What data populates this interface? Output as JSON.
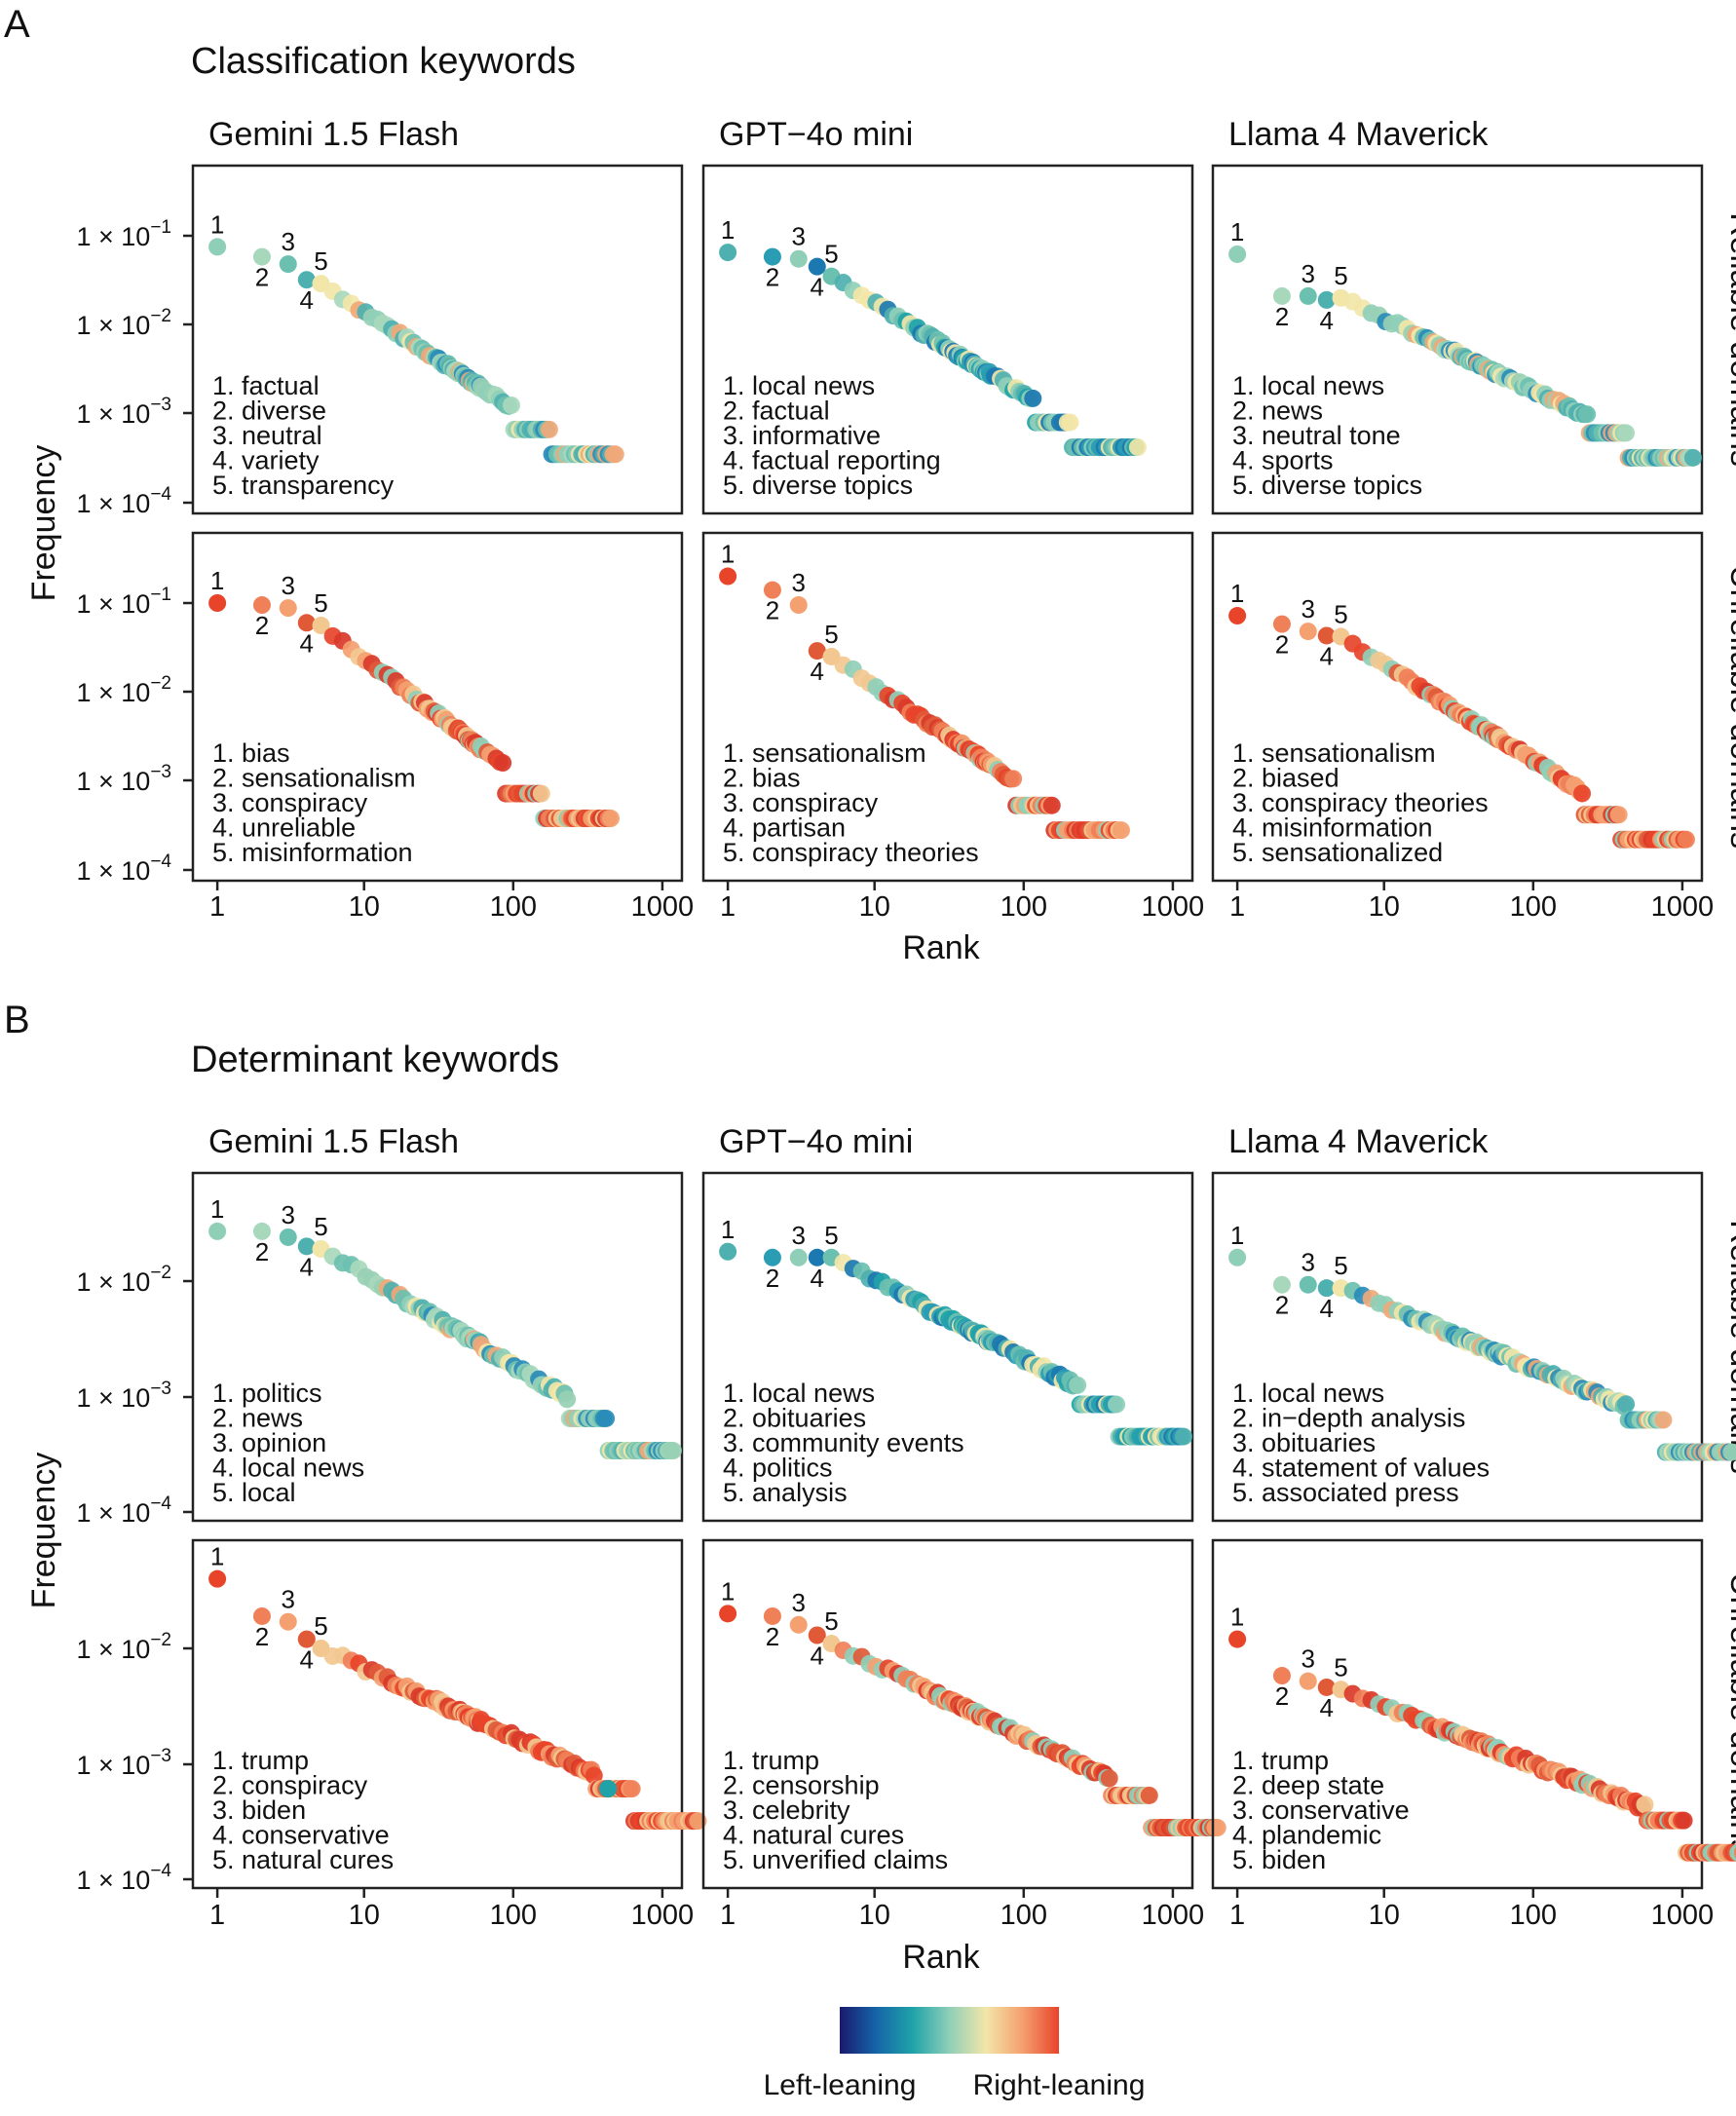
{
  "figure": {
    "panel_letters": [
      "A",
      "B"
    ],
    "colorbar": {
      "left_label": "Left-leaning",
      "right_label": "Right-leaning",
      "colors": [
        "#1a1a6e",
        "#1565a8",
        "#1fa3a8",
        "#8fcfb8",
        "#f2e6a8",
        "#f4a070",
        "#e8442a"
      ]
    }
  },
  "chart_data": [
    {
      "type": "scatter",
      "title": "Classification keywords",
      "xlabel": "Rank",
      "ylabel": "Frequency",
      "x_scale": "log",
      "y_scale": "log",
      "x_ticks": [
        "1",
        "10",
        "100",
        "1000"
      ],
      "y_ticks": [
        {
          "value": 0.1,
          "label_base": "1 × 10",
          "exp": "−1"
        },
        {
          "value": 0.01,
          "label_base": "1 × 10",
          "exp": "−2"
        },
        {
          "value": 0.001,
          "label_base": "1 × 10",
          "exp": "−3"
        },
        {
          "value": 0.0001,
          "label_base": "1 × 10",
          "exp": "−4"
        }
      ],
      "ylim": [
        0.0001,
        0.3
      ],
      "columns": [
        "Gemini 1.5 Flash",
        "GPT−4o mini",
        "Llama 4 Maverick"
      ],
      "rows": [
        "Reliable domains",
        "Unreliable domains"
      ],
      "panels": [
        {
          "model": "Gemini 1.5 Flash",
          "domains": "Reliable domains",
          "max_rank": 500,
          "palette": "reliable",
          "top5_freq": [
            0.075,
            0.058,
            0.048,
            0.032,
            0.029
          ],
          "end_freq": 0.00035,
          "top5_keywords": [
            "factual",
            "diverse",
            "neutral",
            "variety",
            "transparency"
          ]
        },
        {
          "model": "GPT−4o mini",
          "domains": "Reliable domains",
          "max_rank": 600,
          "palette": "reliable_blue",
          "top5_freq": [
            0.065,
            0.058,
            0.055,
            0.045,
            0.035
          ],
          "end_freq": 0.00042,
          "top5_keywords": [
            "local news",
            "factual",
            "informative",
            "factual reporting",
            "diverse topics"
          ]
        },
        {
          "model": "Llama 4 Maverick",
          "domains": "Reliable domains",
          "max_rank": 1200,
          "palette": "reliable",
          "top5_freq": [
            0.062,
            0.021,
            0.021,
            0.019,
            0.02
          ],
          "end_freq": 0.00032,
          "top5_keywords": [
            "local news",
            "news",
            "neutral tone",
            "sports",
            "diverse topics"
          ]
        },
        {
          "model": "Gemini 1.5 Flash",
          "domains": "Unreliable domains",
          "max_rank": 450,
          "palette": "unreliable",
          "top5_freq": [
            0.1,
            0.095,
            0.088,
            0.06,
            0.056
          ],
          "end_freq": 0.00038,
          "top5_keywords": [
            "bias",
            "sensationalism",
            "conspiracy",
            "unreliable",
            "misinformation"
          ]
        },
        {
          "model": "GPT−4o mini",
          "domains": "Unreliable domains",
          "max_rank": 450,
          "palette": "unreliable",
          "top5_freq": [
            0.2,
            0.14,
            0.095,
            0.029,
            0.025
          ],
          "end_freq": 0.00028,
          "top5_keywords": [
            "sensationalism",
            "bias",
            "conspiracy",
            "partisan",
            "conspiracy theories"
          ]
        },
        {
          "model": "Llama 4 Maverick",
          "domains": "Unreliable domains",
          "max_rank": 1100,
          "palette": "unreliable",
          "top5_freq": [
            0.072,
            0.058,
            0.048,
            0.043,
            0.042
          ],
          "end_freq": 0.00022,
          "top5_keywords": [
            "sensationalism",
            "biased",
            "conspiracy theories",
            "misinformation",
            "sensationalized"
          ]
        }
      ]
    },
    {
      "type": "scatter",
      "title": "Determinant keywords",
      "xlabel": "Rank",
      "ylabel": "Frequency",
      "x_scale": "log",
      "y_scale": "log",
      "x_ticks": [
        "1",
        "10",
        "100",
        "1000"
      ],
      "y_ticks": [
        {
          "value": 0.01,
          "label_base": "1 × 10",
          "exp": "−2"
        },
        {
          "value": 0.001,
          "label_base": "1 × 10",
          "exp": "−3"
        },
        {
          "value": 0.0001,
          "label_base": "1 × 10",
          "exp": "−4"
        }
      ],
      "ylim": [
        0.0001,
        0.06
      ],
      "columns": [
        "Gemini 1.5 Flash",
        "GPT−4o mini",
        "Llama 4 Maverick"
      ],
      "rows": [
        "Reliable domains",
        "Unreliable domains"
      ],
      "panels": [
        {
          "model": "Gemini 1.5 Flash",
          "domains": "Reliable domains",
          "max_rank": 1200,
          "palette": "reliable",
          "top5_freq": [
            0.027,
            0.027,
            0.024,
            0.02,
            0.019
          ],
          "end_freq": 0.00034,
          "top5_keywords": [
            "politics",
            "news",
            "opinion",
            "local news",
            "local"
          ]
        },
        {
          "model": "GPT−4o mini",
          "domains": "Reliable domains",
          "max_rank": 1200,
          "palette": "reliable_blue",
          "top5_freq": [
            0.018,
            0.016,
            0.016,
            0.016,
            0.016
          ],
          "end_freq": 0.00045,
          "top5_keywords": [
            "local news",
            "obituaries",
            "community events",
            "politics",
            "analysis"
          ]
        },
        {
          "model": "Llama 4 Maverick",
          "domains": "Reliable domains",
          "max_rank": 2200,
          "palette": "reliable",
          "top5_freq": [
            0.016,
            0.0093,
            0.0093,
            0.0087,
            0.0087
          ],
          "end_freq": 0.00033,
          "top5_keywords": [
            "local news",
            "in−depth analysis",
            "obituaries",
            "statement of values",
            "associated press"
          ]
        },
        {
          "model": "Gemini 1.5 Flash",
          "domains": "Unreliable domains",
          "max_rank": 1800,
          "palette": "unreliable_tail_teal",
          "top5_freq": [
            0.04,
            0.019,
            0.017,
            0.012,
            0.01
          ],
          "end_freq": 0.00032,
          "top5_keywords": [
            "trump",
            "conspiracy",
            "biden",
            "conservative",
            "natural cures"
          ]
        },
        {
          "model": "GPT−4o mini",
          "domains": "Unreliable domains",
          "max_rank": 2000,
          "palette": "unreliable",
          "top5_freq": [
            0.02,
            0.019,
            0.016,
            0.013,
            0.011
          ],
          "end_freq": 0.00028,
          "top5_keywords": [
            "trump",
            "censorship",
            "celebrity",
            "natural cures",
            "unverified claims"
          ]
        },
        {
          "model": "Llama 4 Maverick",
          "domains": "Unreliable domains",
          "max_rank": 3000,
          "palette": "unreliable",
          "top5_freq": [
            0.012,
            0.0058,
            0.0052,
            0.0046,
            0.0044
          ],
          "end_freq": 0.00017,
          "top5_keywords": [
            "trump",
            "deep state",
            "conservative",
            "plandemic",
            "biden"
          ]
        }
      ]
    }
  ]
}
